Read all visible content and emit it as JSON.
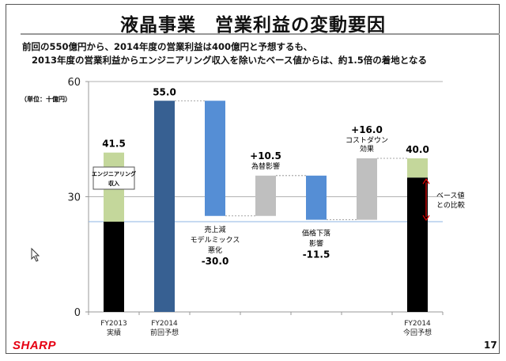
{
  "title": "液晶事業　営業利益の変動要因",
  "subtitle_lines": [
    "前回の550億円から、2014年度の営業利益は400億円と予想するも、",
    "2013年度の営業利益からエンジニアリング収入を除いたベース値からは、約1.5倍の着地となる"
  ],
  "page_number": "17",
  "logo_text": "SHARP",
  "chart_data": {
    "type": "bar",
    "subtype": "waterfall",
    "unit_label": "（単位：十億円）",
    "ylim": [
      0,
      60
    ],
    "yticks": [
      0,
      30,
      60
    ],
    "grid": true,
    "categories": [
      "FY2013\n実績",
      "FY2014\n前回予想",
      "",
      "",
      "",
      "",
      "FY2014\n今回予想"
    ],
    "bars": [
      {
        "category_label": [
          "FY2013",
          "実績"
        ],
        "segments": [
          {
            "from": 0,
            "to": 23.5,
            "color": "#000000"
          },
          {
            "from": 23.5,
            "to": 41.5,
            "color": "#c4d79b"
          }
        ],
        "value_label": "41.5",
        "label_pos": "top"
      },
      {
        "category_label": [
          "FY2014",
          "前回予想"
        ],
        "segments": [
          {
            "from": 0,
            "to": 55.0,
            "color": "#376092"
          }
        ],
        "value_label": "55.0",
        "label_pos": "top"
      },
      {
        "category_label": [],
        "segments": [
          {
            "from": 25.0,
            "to": 55.0,
            "color": "#558ed5"
          }
        ],
        "desc": [
          "売上減",
          "モデルミックス",
          "悪化"
        ],
        "value_label": "-30.0",
        "label_pos": "below"
      },
      {
        "category_label": [],
        "segments": [
          {
            "from": 25.0,
            "to": 35.5,
            "color": "#bfbfbf"
          }
        ],
        "desc": [
          "為替影響"
        ],
        "value_label": "+10.5",
        "label_pos": "above"
      },
      {
        "category_label": [],
        "segments": [
          {
            "from": 24.0,
            "to": 35.5,
            "color": "#558ed5"
          }
        ],
        "desc": [
          "価格下落",
          "影響"
        ],
        "value_label": "-11.5",
        "label_pos": "below"
      },
      {
        "category_label": [],
        "segments": [
          {
            "from": 24.0,
            "to": 40.0,
            "color": "#bfbfbf"
          }
        ],
        "desc": [
          "コストダウン",
          "効果"
        ],
        "value_label": "+16.0",
        "label_pos": "above"
      },
      {
        "category_label": [
          "FY2014",
          "今回予想"
        ],
        "segments": [
          {
            "from": 0,
            "to": 35.0,
            "color": "#000000"
          },
          {
            "from": 35.0,
            "to": 40.0,
            "color": "#c4d79b"
          }
        ],
        "value_label": "40.0",
        "label_pos": "top"
      }
    ],
    "base_line_value": 23.5,
    "callout_engineering": [
      "エンジニアリング",
      "収入"
    ],
    "callout_base": [
      "ベース値",
      "との比較"
    ]
  }
}
